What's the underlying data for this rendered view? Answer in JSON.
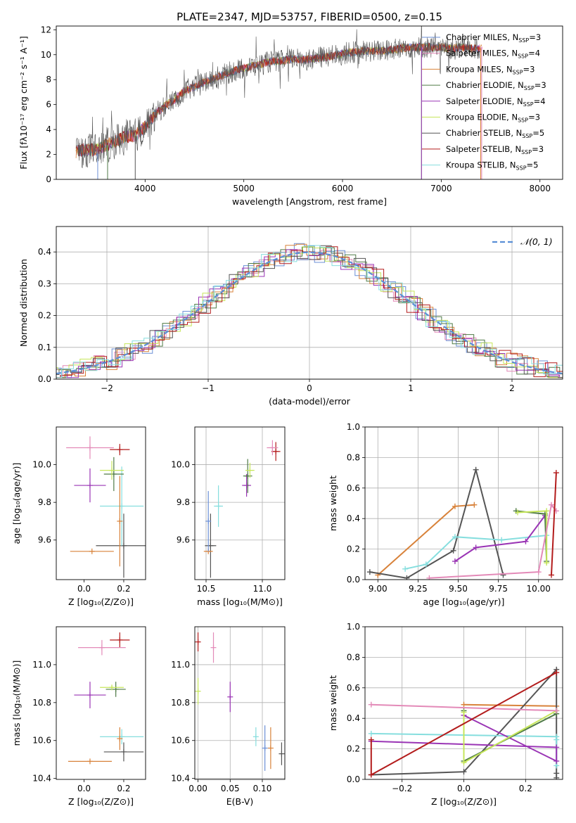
{
  "title": "PLATE=2347, MJD=53757, FIBERID=0500, z=0.15",
  "models": [
    {
      "name": "Chabrier MILES, N",
      "sub": "SSP",
      "val": "=3",
      "color": "#6b8fd6"
    },
    {
      "name": "Salpeter MILES, N",
      "sub": "SSP",
      "val": "=4",
      "color": "#e38ab8"
    },
    {
      "name": "Kroupa MILES, N",
      "sub": "SSP",
      "val": "=3",
      "color": "#d8823a"
    },
    {
      "name": "Chabrier ELODIE, N",
      "sub": "SSP",
      "val": "=3",
      "color": "#4f7a46"
    },
    {
      "name": "Salpeter ELODIE, N",
      "sub": "SSP",
      "val": "=4",
      "color": "#9a35b5"
    },
    {
      "name": "Kroupa ELODIE, N",
      "sub": "SSP",
      "val": "=3",
      "color": "#c6e65b"
    },
    {
      "name": "Chabrier STELIB, N",
      "sub": "SSP",
      "val": "=5",
      "color": "#555555"
    },
    {
      "name": "Salpeter STELIB, N",
      "sub": "SSP",
      "val": "=3",
      "color": "#b31c1c"
    },
    {
      "name": "Kroupa STELIB, N",
      "sub": "SSP",
      "val": "=5",
      "color": "#86dede"
    }
  ],
  "chart_data": [
    {
      "type": "line",
      "panel": "spectrum",
      "xlabel": "wavelength [Angstrom, rest frame]",
      "ylabel": "Flux [fλ10⁻¹⁷ erg cm⁻² s⁻¹ A⁻¹]",
      "xlim": [
        3100,
        8230
      ],
      "ylim": [
        0,
        12.3
      ],
      "xticks": [
        "4000",
        "5000",
        "6000",
        "7000",
        "8000"
      ],
      "yticks": [
        "0",
        "2",
        "4",
        "6",
        "8",
        "10",
        "12"
      ],
      "continuum_wavelength": [
        3300,
        3400,
        3500,
        3600,
        3700,
        3800,
        3900,
        4000,
        4100,
        4200,
        4300,
        4400,
        4500,
        4600,
        4700,
        4800,
        4900,
        5000,
        5100,
        5200,
        5300,
        5400,
        5500,
        5600,
        5700,
        5800,
        5900,
        6000,
        6100,
        6200,
        6300,
        6400,
        6500,
        6600,
        6700,
        6800,
        6900,
        7000,
        7100,
        7200,
        7300,
        7400
      ],
      "continuum_flux": [
        2.2,
        2.4,
        2.4,
        2.7,
        3.1,
        3.4,
        3.5,
        4.2,
        5.2,
        5.9,
        6.4,
        7.1,
        7.4,
        7.8,
        8.1,
        8.4,
        8.7,
        8.9,
        9.1,
        9.3,
        9.5,
        9.5,
        9.7,
        9.6,
        9.7,
        9.8,
        9.9,
        10.1,
        10.2,
        10.3,
        10.3,
        10.3,
        10.4,
        10.5,
        10.6,
        10.6,
        10.6,
        10.6,
        10.5,
        10.6,
        10.5,
        10.5
      ],
      "grid": false,
      "legend": "upper right"
    },
    {
      "type": "line",
      "panel": "normalized residual distribution",
      "xlabel": "(data-model)/error",
      "ylabel": "Normed distribution",
      "xlim": [
        -2.5,
        2.5
      ],
      "ylim": [
        0,
        0.48
      ],
      "xticks": [
        "−2",
        "−1",
        "0",
        "1",
        "2"
      ],
      "yticks": [
        "0.0",
        "0.1",
        "0.2",
        "0.3",
        "0.4"
      ],
      "gaussian_label": "𝒩(0, 1)",
      "grid": true,
      "legend": "upper right"
    },
    {
      "type": "scatter",
      "panel": "age vs metallicity",
      "xlabel": "Z [log₁₀(Z/Z⊙)]",
      "ylabel": "age  [log₁₀(age/yr)]",
      "xlim": [
        -0.14,
        0.31
      ],
      "ylim": [
        9.39,
        10.2
      ],
      "xticks": [
        "0.0",
        "0.2"
      ],
      "yticks": [
        "9.6",
        "9.8",
        "10.0"
      ],
      "points": [
        {
          "x": 0.2,
          "y": 9.57,
          "xerr": 0.14,
          "yerr": 0.17,
          "model": 6
        },
        {
          "x": 0.04,
          "y": 9.54,
          "xerr": 0.11,
          "yerr": 0.0,
          "model": 2
        },
        {
          "x": 0.19,
          "y": 9.78,
          "xerr": 0.11,
          "yerr": 0.21,
          "model": 8
        },
        {
          "x": 0.18,
          "y": 9.7,
          "xerr": 0.0,
          "yerr": 0.24,
          "model": 2
        },
        {
          "x": 0.03,
          "y": 9.89,
          "xerr": 0.08,
          "yerr": 0.09,
          "model": 4
        },
        {
          "x": 0.15,
          "y": 9.95,
          "xerr": 0.05,
          "yerr": 0.09,
          "model": 3
        },
        {
          "x": 0.14,
          "y": 9.97,
          "xerr": 0.06,
          "yerr": 0.05,
          "model": 5
        },
        {
          "x": 0.18,
          "y": 10.08,
          "xerr": 0.05,
          "yerr": 0.03,
          "model": 7
        },
        {
          "x": 0.03,
          "y": 10.09,
          "xerr": 0.12,
          "yerr": 0.06,
          "model": 1
        }
      ],
      "grid": false
    },
    {
      "type": "scatter",
      "panel": "age vs mass",
      "xlabel": "mass [log₁₀(M/M⊙)]",
      "xlim": [
        10.4,
        11.2
      ],
      "ylim": [
        9.39,
        10.2
      ],
      "xticks": [
        "10.5",
        "11.0"
      ],
      "yticks": [
        "9.6",
        "9.8",
        "10.0"
      ],
      "points": [
        {
          "x": 10.54,
          "y": 9.57,
          "xerr": 0.05,
          "yerr": 0.17,
          "model": 6
        },
        {
          "x": 10.52,
          "y": 9.54,
          "xerr": 0.04,
          "yerr": 0.0,
          "model": 2
        },
        {
          "x": 10.61,
          "y": 9.78,
          "xerr": 0.04,
          "yerr": 0.11,
          "model": 8
        },
        {
          "x": 10.52,
          "y": 9.7,
          "xerr": 0.0,
          "yerr": 0.16,
          "model": 0
        },
        {
          "x": 10.86,
          "y": 9.89,
          "xerr": 0.04,
          "yerr": 0.06,
          "model": 4
        },
        {
          "x": 10.87,
          "y": 9.94,
          "xerr": 0.04,
          "yerr": 0.09,
          "model": 3
        },
        {
          "x": 10.89,
          "y": 9.97,
          "xerr": 0.04,
          "yerr": 0.04,
          "model": 5
        },
        {
          "x": 11.12,
          "y": 10.07,
          "xerr": 0.04,
          "yerr": 0.05,
          "model": 7
        },
        {
          "x": 11.09,
          "y": 10.09,
          "xerr": 0.05,
          "yerr": 0.04,
          "model": 1
        }
      ],
      "grid": true
    },
    {
      "type": "line",
      "panel": "mass weight vs age",
      "xlabel": "age  [log₁₀(age/yr)]",
      "ylabel": "mass weight",
      "xlim": [
        8.92,
        10.15
      ],
      "ylim": [
        0,
        1
      ],
      "xticks": [
        "9.00",
        "9.25",
        "9.50",
        "9.75",
        "10.00"
      ],
      "yticks": [
        "0.0",
        "0.2",
        "0.4",
        "0.6",
        "0.8",
        "1.0"
      ],
      "series": [
        {
          "model": 2,
          "x": [
            9.0,
            9.48,
            9.6
          ],
          "y": [
            0.03,
            0.48,
            0.49
          ]
        },
        {
          "model": 6,
          "x": [
            8.95,
            9.18,
            9.47,
            9.61,
            9.78
          ],
          "y": [
            0.05,
            0.01,
            0.19,
            0.72,
            0.03
          ]
        },
        {
          "model": 8,
          "x": [
            9.17,
            9.3,
            9.48,
            9.77,
            10.05
          ],
          "y": [
            0.07,
            0.1,
            0.28,
            0.26,
            0.29
          ]
        },
        {
          "model": 4,
          "x": [
            9.48,
            9.61,
            9.92,
            10.04
          ],
          "y": [
            0.12,
            0.21,
            0.25,
            0.42
          ]
        },
        {
          "model": 3,
          "x": [
            9.86,
            10.04,
            10.05
          ],
          "y": [
            0.45,
            0.43,
            0.12
          ]
        },
        {
          "model": 5,
          "x": [
            9.87,
            10.05,
            10.05
          ],
          "y": [
            0.44,
            0.45,
            0.11
          ]
        },
        {
          "model": 1,
          "x": [
            9.32,
            10.0,
            10.08,
            10.11
          ],
          "y": [
            0.01,
            0.05,
            0.49,
            0.45
          ]
        },
        {
          "model": 7,
          "x": [
            10.08,
            10.11
          ],
          "y": [
            0.03,
            0.7
          ]
        }
      ],
      "grid": true
    },
    {
      "type": "scatter",
      "panel": "mass vs metallicity",
      "xlabel": "Z [log₁₀(Z/Z⊙)]",
      "ylabel": "mass [log₁₀(M/M⊙)]",
      "xlim": [
        -0.14,
        0.31
      ],
      "ylim": [
        10.395,
        11.2
      ],
      "xticks": [
        "0.0",
        "0.2"
      ],
      "yticks": [
        "10.4",
        "10.6",
        "10.8",
        "11.0"
      ],
      "points": [
        {
          "x": 0.2,
          "y": 10.54,
          "xerr": 0.1,
          "yerr": 0.05,
          "model": 6
        },
        {
          "x": 0.03,
          "y": 10.49,
          "xerr": 0.11,
          "yerr": 0.0,
          "model": 2
        },
        {
          "x": 0.19,
          "y": 10.62,
          "xerr": 0.11,
          "yerr": 0.04,
          "model": 8
        },
        {
          "x": 0.18,
          "y": 10.61,
          "xerr": 0.0,
          "yerr": 0.06,
          "model": 2
        },
        {
          "x": 0.03,
          "y": 10.84,
          "xerr": 0.08,
          "yerr": 0.07,
          "model": 4
        },
        {
          "x": 0.16,
          "y": 10.87,
          "xerr": 0.05,
          "yerr": 0.04,
          "model": 3
        },
        {
          "x": 0.14,
          "y": 10.88,
          "xerr": 0.06,
          "yerr": 0.01,
          "model": 5
        },
        {
          "x": 0.18,
          "y": 11.13,
          "xerr": 0.05,
          "yerr": 0.04,
          "model": 7
        },
        {
          "x": 0.09,
          "y": 11.09,
          "xerr": 0.12,
          "yerr": 0.04,
          "model": 1
        }
      ],
      "grid": false
    },
    {
      "type": "scatter",
      "panel": "mass vs extinction",
      "xlabel": "E(B-V)",
      "xlim": [
        -0.005,
        0.135
      ],
      "ylim": [
        10.395,
        11.2
      ],
      "xticks": [
        "0.00",
        "0.05",
        "0.10"
      ],
      "yticks": [
        "10.4",
        "10.6",
        "10.8",
        "11.0"
      ],
      "points": [
        {
          "x": 0.0,
          "y": 11.12,
          "yerr": 0.05,
          "model": 7
        },
        {
          "x": 0.024,
          "y": 11.09,
          "yerr": 0.08,
          "model": 1
        },
        {
          "x": 0.0,
          "y": 10.86,
          "yerr": 0.07,
          "model": 5
        },
        {
          "x": 0.05,
          "y": 10.83,
          "yerr": 0.08,
          "model": 4
        },
        {
          "x": 0.09,
          "y": 10.62,
          "yerr": 0.05,
          "model": 8
        },
        {
          "x": 0.104,
          "y": 10.56,
          "yerr": 0.12,
          "model": 0
        },
        {
          "x": 0.113,
          "y": 10.56,
          "yerr": 0.11,
          "model": 2
        },
        {
          "x": 0.13,
          "y": 10.53,
          "yerr": 0.06,
          "model": 6
        }
      ],
      "grid": true
    },
    {
      "type": "line",
      "panel": "mass weight vs metallicity",
      "xlabel": "Z [log₁₀(Z/Z⊙)]",
      "ylabel": "mass weight",
      "xlim": [
        -0.32,
        0.32
      ],
      "ylim": [
        0,
        1
      ],
      "xticks": [
        "−0.2",
        "0.0",
        "0.2"
      ],
      "yticks": [
        "0.0",
        "0.2",
        "0.4",
        "0.6",
        "0.8",
        "1.0"
      ],
      "series": [
        {
          "model": 2,
          "x": [
            0.0,
            0.3
          ],
          "y": [
            0.49,
            0.48
          ]
        },
        {
          "model": 6,
          "x": [
            -0.3,
            0.0,
            0.3,
            0.3,
            0.3
          ],
          "y": [
            0.03,
            0.05,
            0.72,
            0.01,
            0.04
          ]
        },
        {
          "model": 8,
          "x": [
            -0.3,
            0.3,
            0.3,
            0.3
          ],
          "y": [
            0.3,
            0.28,
            0.26,
            0.09
          ]
        },
        {
          "model": 4,
          "x": [
            -0.3,
            0.3,
            0.3,
            0.0
          ],
          "y": [
            0.25,
            0.21,
            0.12,
            0.42
          ]
        },
        {
          "model": 3,
          "x": [
            0.0,
            0.0,
            0.3,
            0.3
          ],
          "y": [
            0.45,
            0.12,
            0.43,
            0.45
          ]
        },
        {
          "model": 5,
          "x": [
            0.0,
            0.0,
            0.3
          ],
          "y": [
            0.44,
            0.11,
            0.45
          ]
        },
        {
          "model": 1,
          "x": [
            -0.3,
            0.3
          ],
          "y": [
            0.49,
            0.45
          ]
        },
        {
          "model": 7,
          "x": [
            -0.3,
            -0.3,
            0.3
          ],
          "y": [
            0.26,
            0.03,
            0.7
          ]
        }
      ],
      "grid": true
    }
  ]
}
